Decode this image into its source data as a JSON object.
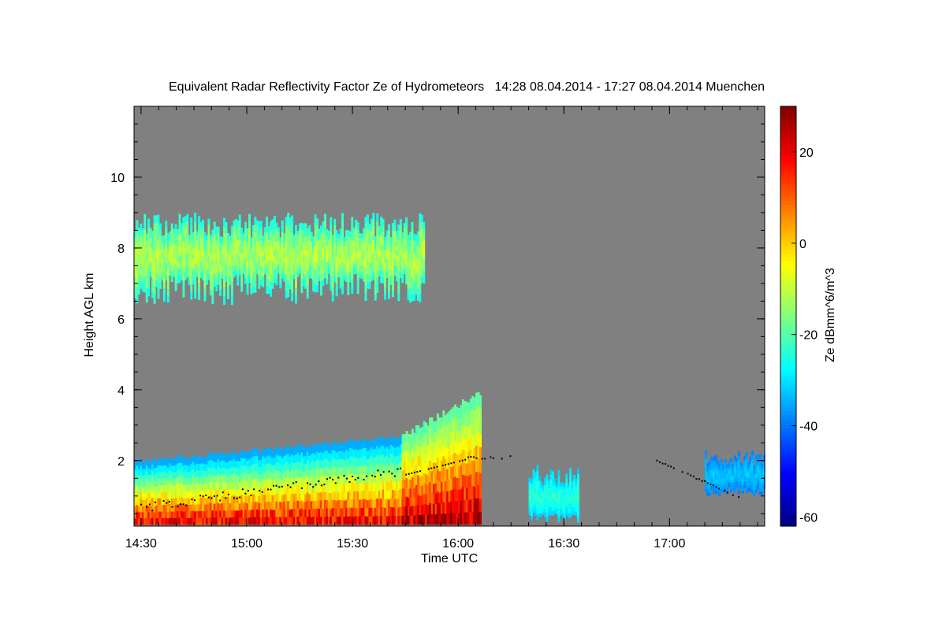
{
  "chart_data": {
    "type": "heatmap",
    "title": "Equivalent Radar Reflectivity Factor Ze of Hydrometeors   14:28 08.04.2014 - 17:27 08.04.2014 Muenchen",
    "xlabel": "Time UTC",
    "ylabel": "Height AGL km",
    "colorbar_label": "Ze dBmm^6/m^3",
    "background_color": "#808080",
    "xlim_minutes": [
      868,
      1047
    ],
    "ylim_km": [
      0.15,
      12.0
    ],
    "x_ticks": [
      {
        "value": 870,
        "label": "14:30"
      },
      {
        "value": 900,
        "label": "15:00"
      },
      {
        "value": 930,
        "label": "15:30"
      },
      {
        "value": 960,
        "label": "16:00"
      },
      {
        "value": 990,
        "label": "16:30"
      },
      {
        "value": 1020,
        "label": "17:00"
      }
    ],
    "y_ticks": [
      {
        "value": 2,
        "label": "2"
      },
      {
        "value": 4,
        "label": "4"
      },
      {
        "value": 6,
        "label": "6"
      },
      {
        "value": 8,
        "label": "8"
      },
      {
        "value": 10,
        "label": "10"
      }
    ],
    "colorbar_range": [
      -62,
      30
    ],
    "colorbar_ticks": [
      {
        "value": 20,
        "label": "20"
      },
      {
        "value": 0,
        "label": "0"
      },
      {
        "value": -20,
        "label": "-20"
      },
      {
        "value": -40,
        "label": "-40"
      },
      {
        "value": -60,
        "label": "-60"
      }
    ],
    "colormap": "jet",
    "regions": [
      {
        "name": "upper-cirrus-layer",
        "time_range": [
          "14:28",
          "15:50"
        ],
        "height_km": [
          6.2,
          9.2
        ],
        "ze_dbz_range": [
          -40,
          -5
        ]
      },
      {
        "name": "low-stratiform-layer",
        "time_range": [
          "14:28",
          "15:45"
        ],
        "height_km": [
          0.2,
          2.6
        ],
        "ze_dbz_range": [
          -35,
          25
        ]
      },
      {
        "name": "precipitation-core",
        "time_range": [
          "15:44",
          "16:06"
        ],
        "height_km": [
          0.2,
          3.8
        ],
        "ze_dbz_range": [
          -30,
          30
        ]
      },
      {
        "name": "shallow-cell",
        "time_range": [
          "16:20",
          "16:34"
        ],
        "height_km": [
          0.2,
          1.9
        ],
        "ze_dbz_range": [
          -40,
          -20
        ]
      },
      {
        "name": "late-low-cloud",
        "time_range": [
          "17:10",
          "17:27"
        ],
        "height_km": [
          1.0,
          2.3
        ],
        "ze_dbz_range": [
          -45,
          -30
        ]
      }
    ],
    "black_dots": "cloud base height markers"
  }
}
